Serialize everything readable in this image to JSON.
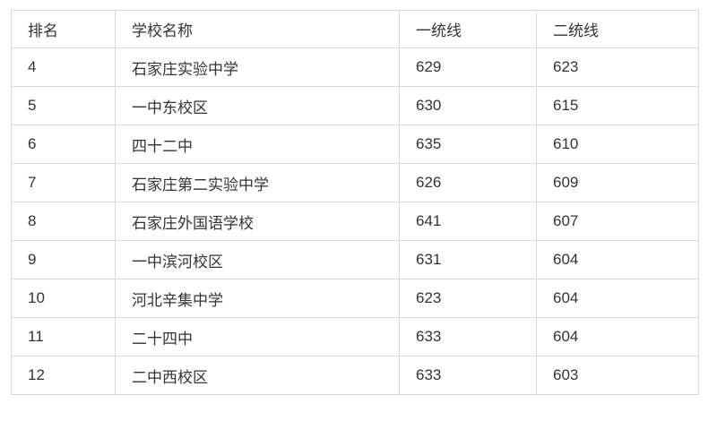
{
  "colors": {
    "background": "#ffffff",
    "border": "#d9d9d9",
    "text": "#333333"
  },
  "table": {
    "columns": [
      {
        "key": "rank",
        "label": "排名"
      },
      {
        "key": "school",
        "label": "学校名称"
      },
      {
        "key": "line1",
        "label": "一统线"
      },
      {
        "key": "line2",
        "label": "二统线"
      }
    ],
    "rows": [
      {
        "rank": "4",
        "school": "石家庄实验中学",
        "line1": "629",
        "line2": "623"
      },
      {
        "rank": "5",
        "school": "一中东校区",
        "line1": "630",
        "line2": "615"
      },
      {
        "rank": "6",
        "school": "四十二中",
        "line1": "635",
        "line2": "610"
      },
      {
        "rank": "7",
        "school": "石家庄第二实验中学",
        "line1": "626",
        "line2": "609"
      },
      {
        "rank": "8",
        "school": "石家庄外国语学校",
        "line1": "641",
        "line2": "607"
      },
      {
        "rank": "9",
        "school": "一中滨河校区",
        "line1": "631",
        "line2": "604"
      },
      {
        "rank": "10",
        "school": "河北辛集中学",
        "line1": "623",
        "line2": "604"
      },
      {
        "rank": "11",
        "school": "二十四中",
        "line1": "633",
        "line2": "604"
      },
      {
        "rank": "12",
        "school": "二中西校区",
        "line1": "633",
        "line2": "603"
      }
    ]
  }
}
